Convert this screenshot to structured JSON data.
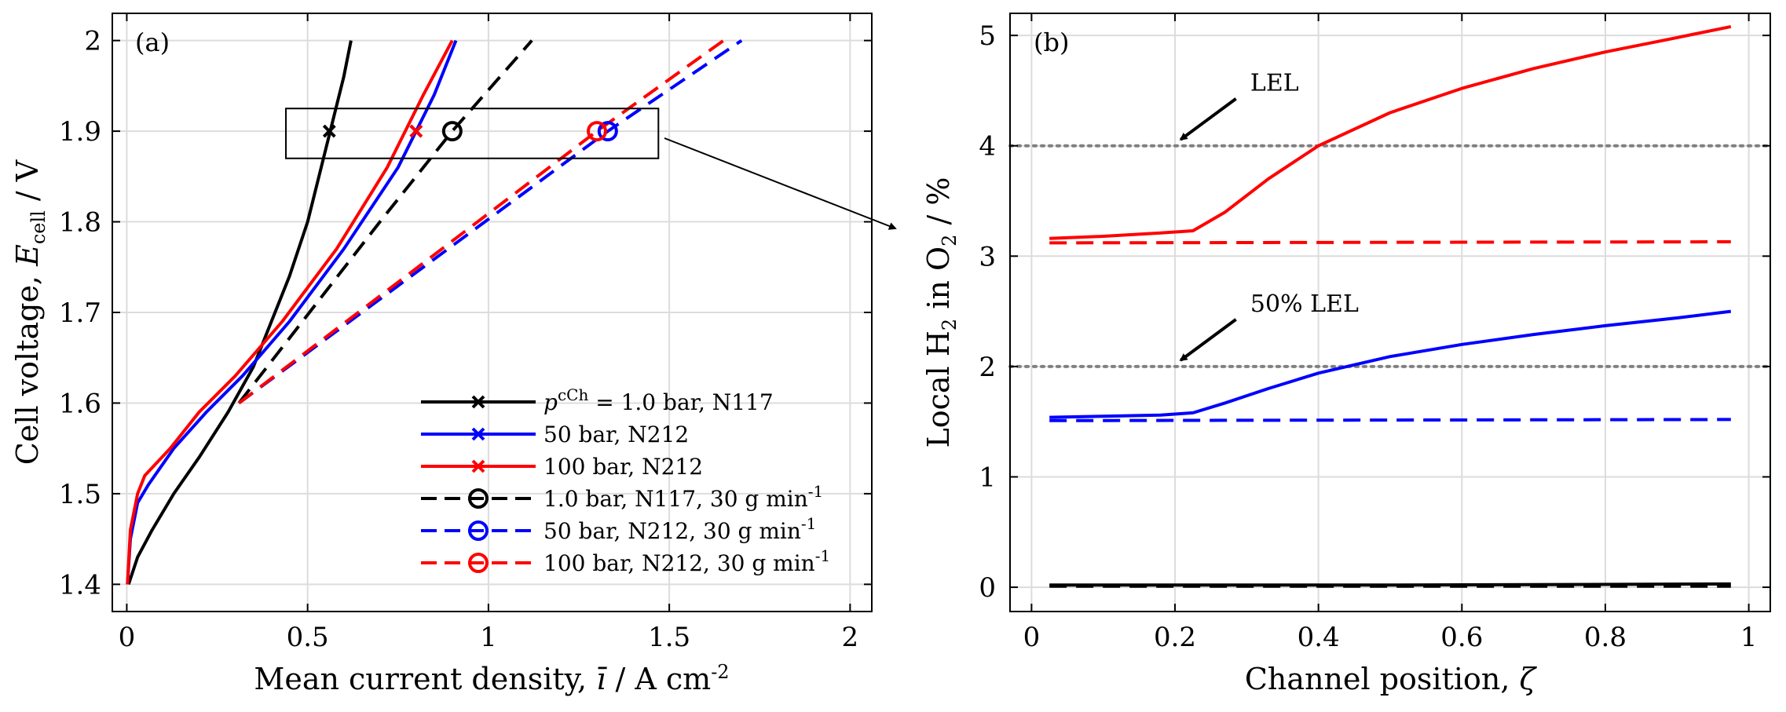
{
  "chart_data": [
    {
      "panel_label": "(a)",
      "type": "line",
      "xlabel": "Mean current density, ī / A cm-2",
      "ylabel": "Cell voltage, Ecell / V",
      "xlim": [
        -0.04,
        2.06
      ],
      "ylim": [
        1.37,
        2.03
      ],
      "xticks": [
        0,
        0.5,
        1,
        1.5,
        2
      ],
      "xtick_labels": [
        "0",
        "0.5",
        "1",
        "1.5",
        "2"
      ],
      "yticks": [
        1.4,
        1.5,
        1.6,
        1.7,
        1.8,
        1.9,
        2.0
      ],
      "ytick_labels": [
        "1.4",
        "1.5",
        "1.6",
        "1.7",
        "1.8",
        "1.9",
        "2"
      ],
      "grid": true,
      "legend_position": "bottom-right",
      "series": [
        {
          "name": "pcCh = 1.0 bar, N117",
          "legend_prefix": "p",
          "legend_sup": "cCh",
          "legend_rest": " = 1.0 bar, N117",
          "color": "#000000",
          "style": "solid",
          "marker": "x",
          "x": [
            0.005,
            0.03,
            0.07,
            0.13,
            0.2,
            0.28,
            0.35,
            0.4,
            0.45,
            0.5,
            0.55,
            0.6,
            0.62
          ],
          "y": [
            1.4,
            1.43,
            1.46,
            1.5,
            1.54,
            1.59,
            1.64,
            1.69,
            1.74,
            1.8,
            1.88,
            1.96,
            2.0
          ],
          "marker_points": [
            {
              "x": 0.56,
              "y": 1.9
            }
          ]
        },
        {
          "name": "50 bar, N212",
          "color": "#0000ff",
          "style": "solid",
          "marker": "x",
          "x": [
            0.002,
            0.01,
            0.03,
            0.06,
            0.13,
            0.22,
            0.32,
            0.45,
            0.6,
            0.75,
            0.85,
            0.91
          ],
          "y": [
            1.4,
            1.45,
            1.49,
            1.51,
            1.55,
            1.59,
            1.63,
            1.69,
            1.77,
            1.86,
            1.94,
            2.0
          ],
          "marker_points": [
            {
              "x": 0.8,
              "y": 1.9
            }
          ]
        },
        {
          "name": "100 bar, N212",
          "color": "#ff0000",
          "style": "solid",
          "marker": "x",
          "x": [
            0.002,
            0.01,
            0.03,
            0.05,
            0.12,
            0.2,
            0.3,
            0.43,
            0.58,
            0.72,
            0.82,
            0.9
          ],
          "y": [
            1.4,
            1.46,
            1.5,
            1.52,
            1.55,
            1.59,
            1.63,
            1.69,
            1.77,
            1.86,
            1.94,
            2.0
          ],
          "marker_points": [
            {
              "x": 0.8,
              "y": 1.9
            }
          ]
        },
        {
          "name": "1.0 bar, N117, 30 g min-1",
          "legend_prefix": "",
          "legend_sup": "",
          "legend_rest": "1.0 bar, N117, 30 g min",
          "legend_tail": "-1",
          "color": "#000000",
          "style": "dashed",
          "marker": "o",
          "x": [
            0.31,
            0.7,
            0.9,
            1.12
          ],
          "y": [
            1.6,
            1.8,
            1.9,
            2.0
          ],
          "marker_points": [
            {
              "x": 0.9,
              "y": 1.9
            }
          ]
        },
        {
          "name": "50 bar, N212, 30 g min-1",
          "legend_rest": "50 bar, N212, 30 g min",
          "legend_tail": "-1",
          "color": "#0000ff",
          "style": "dashed",
          "marker": "o",
          "x": [
            0.31,
            1.33,
            1.7
          ],
          "y": [
            1.6,
            1.9,
            2.0
          ],
          "marker_points": [
            {
              "x": 1.33,
              "y": 1.9
            }
          ]
        },
        {
          "name": "100 bar, N212, 30 g min-1",
          "legend_rest": "100 bar, N212, 30 g min",
          "legend_tail": "-1",
          "color": "#ff0000",
          "style": "dashed",
          "marker": "o",
          "x": [
            0.31,
            1.3,
            1.65
          ],
          "y": [
            1.6,
            1.9,
            2.0
          ],
          "marker_points": [
            {
              "x": 1.3,
              "y": 1.9
            }
          ]
        }
      ],
      "zoom_box": {
        "x": [
          0.44,
          1.47
        ],
        "y": [
          1.87,
          1.925
        ]
      }
    },
    {
      "panel_label": "(b)",
      "type": "line",
      "xlabel": "Channel position, ζ",
      "ylabel": "Local H2 in O2 / %",
      "xlim": [
        -0.03,
        1.03
      ],
      "ylim": [
        -0.22,
        5.2
      ],
      "xticks": [
        0,
        0.2,
        0.4,
        0.6,
        0.8,
        1
      ],
      "xtick_labels": [
        "0",
        "0.2",
        "0.4",
        "0.6",
        "0.8",
        "1"
      ],
      "yticks": [
        0,
        1,
        2,
        3,
        4,
        5
      ],
      "ytick_labels": [
        "0",
        "1",
        "2",
        "3",
        "4",
        "5"
      ],
      "grid": true,
      "reference_lines": [
        {
          "y": 4,
          "label": "LEL",
          "color": "#808080",
          "style": "dotted"
        },
        {
          "y": 2,
          "label": "50% LEL",
          "color": "#808080",
          "style": "dotted"
        }
      ],
      "series": [
        {
          "name": "100 bar, N212",
          "color": "#ff0000",
          "style": "solid",
          "x": [
            0.025,
            0.1,
            0.18,
            0.225,
            0.27,
            0.33,
            0.4,
            0.5,
            0.6,
            0.7,
            0.8,
            0.9,
            0.975
          ],
          "y": [
            3.16,
            3.18,
            3.21,
            3.23,
            3.4,
            3.7,
            4.0,
            4.3,
            4.52,
            4.7,
            4.85,
            4.98,
            5.08
          ]
        },
        {
          "name": "100 bar, N212, 30 g min-1",
          "color": "#ff0000",
          "style": "dashed",
          "x": [
            0.025,
            0.975
          ],
          "y": [
            3.12,
            3.13
          ]
        },
        {
          "name": "50 bar, N212",
          "color": "#0000ff",
          "style": "solid",
          "x": [
            0.025,
            0.1,
            0.18,
            0.225,
            0.27,
            0.33,
            0.4,
            0.5,
            0.6,
            0.7,
            0.8,
            0.9,
            0.975
          ],
          "y": [
            1.54,
            1.55,
            1.56,
            1.58,
            1.67,
            1.8,
            1.94,
            2.09,
            2.2,
            2.29,
            2.37,
            2.44,
            2.5
          ]
        },
        {
          "name": "50 bar, N212, 30 g min-1",
          "color": "#0000ff",
          "style": "dashed",
          "x": [
            0.025,
            0.975
          ],
          "y": [
            1.51,
            1.52
          ]
        },
        {
          "name": "1.0 bar, N117",
          "color": "#000000",
          "style": "solid",
          "x": [
            0.025,
            0.5,
            0.975
          ],
          "y": [
            0.02,
            0.02,
            0.03
          ]
        },
        {
          "name": "1.0 bar, N117, 30 g min-1",
          "color": "#000000",
          "style": "dashed",
          "x": [
            0.025,
            0.975
          ],
          "y": [
            0.01,
            0.01
          ]
        }
      ]
    }
  ]
}
